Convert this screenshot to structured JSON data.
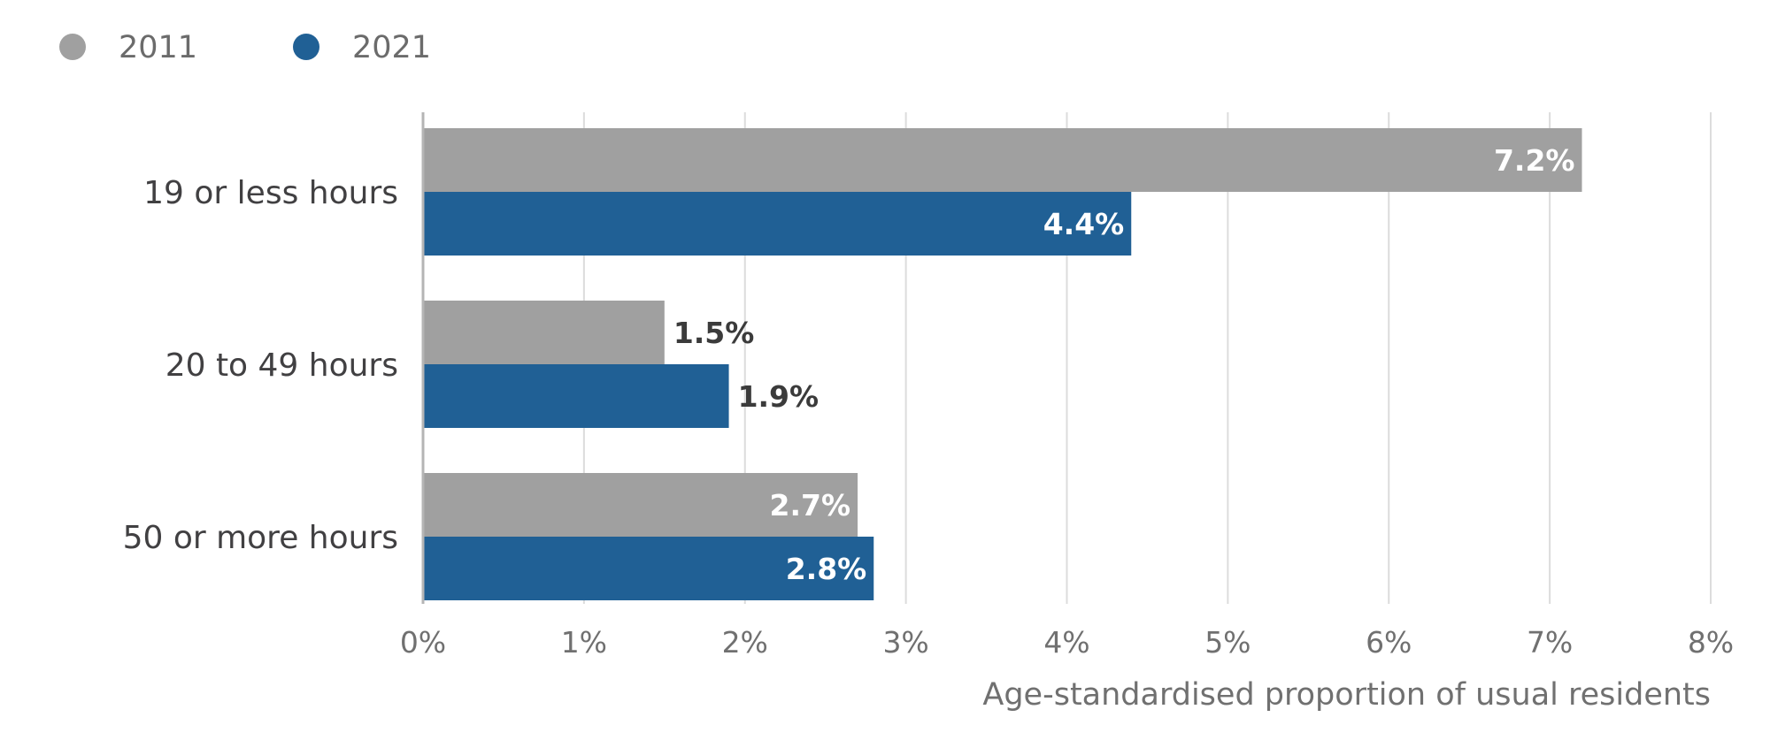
{
  "chart_data": {
    "type": "bar",
    "orientation": "horizontal",
    "categories": [
      "19 or less hours",
      "20 to 49 hours",
      "50 or more hours"
    ],
    "series": [
      {
        "name": "2011",
        "color": "#a0a0a0",
        "values": [
          7.2,
          1.5,
          2.7
        ],
        "labels": [
          "7.2%",
          "1.5%",
          "2.7%"
        ]
      },
      {
        "name": "2021",
        "color": "#206095",
        "values": [
          4.4,
          1.9,
          2.8
        ],
        "labels": [
          "4.4%",
          "1.9%",
          "2.8%"
        ]
      }
    ],
    "xlim": [
      0,
      8
    ],
    "ticks": [
      0,
      1,
      2,
      3,
      4,
      5,
      6,
      7,
      8
    ],
    "tick_labels": [
      "0%",
      "1%",
      "2%",
      "3%",
      "4%",
      "5%",
      "6%",
      "7%",
      "8%"
    ],
    "xlabel": "Age-standardised proportion of usual residents",
    "grid": true,
    "legend_position": "top-left"
  }
}
